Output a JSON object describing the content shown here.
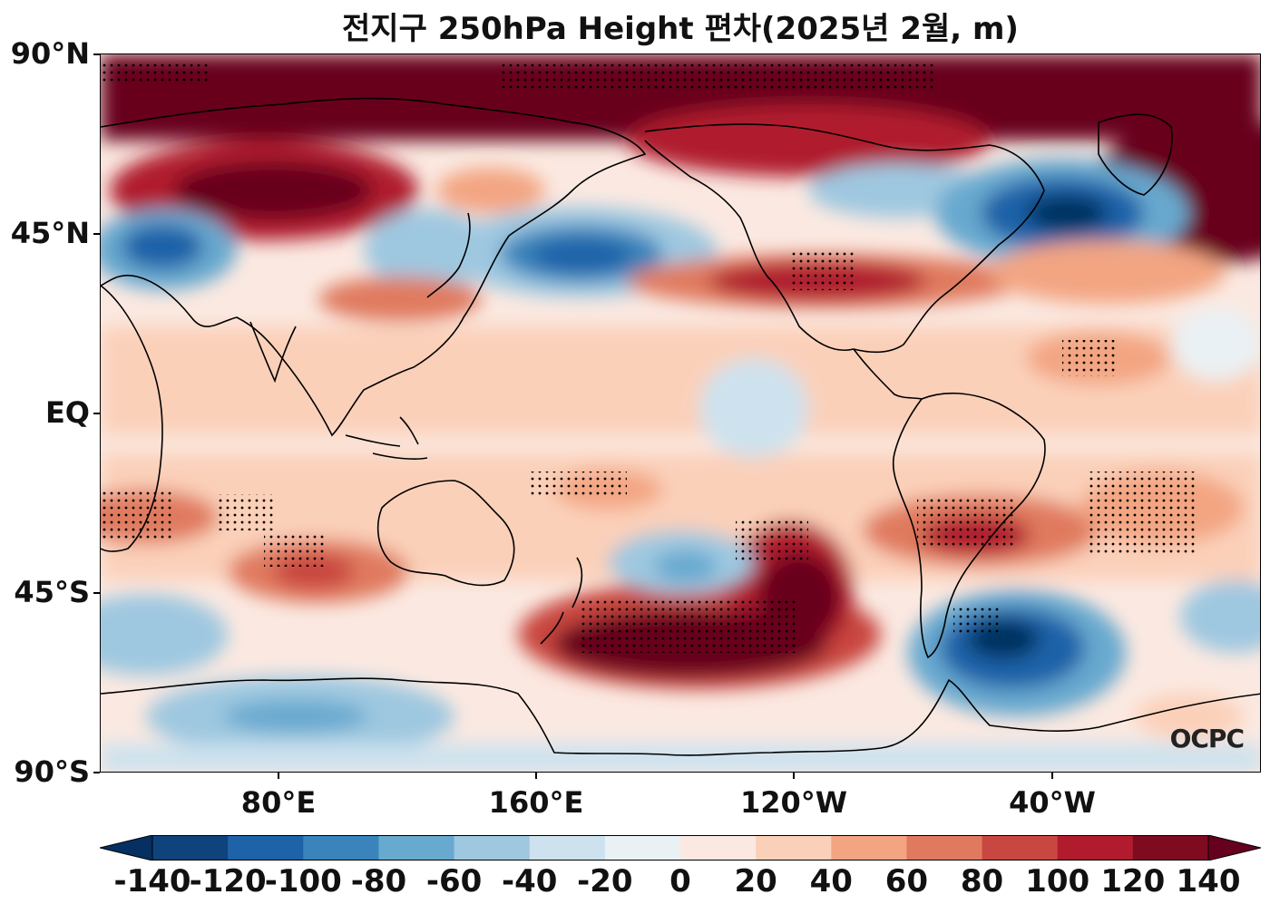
{
  "title": "전지구 250hPa Height 편차(2025년 2월, m)",
  "logo": "OCPC",
  "y_axis": [
    "90°N",
    "45°N",
    "EQ",
    "45°S",
    "90°S"
  ],
  "x_axis": [
    "80°E",
    "160°E",
    "120°W",
    "40°W"
  ],
  "colorbar": {
    "labels": [
      "-140",
      "-120",
      "-100",
      "-80",
      "-60",
      "-40",
      "-20",
      "0",
      "20",
      "40",
      "60",
      "80",
      "100",
      "120",
      "140"
    ],
    "colors": [
      "#053061",
      "#0f437b",
      "#1e62a8",
      "#3a84bb",
      "#67a9cf",
      "#9ec8e0",
      "#cde2ee",
      "#eaf1f4",
      "#fbe9e1",
      "#fbd0b9",
      "#f3a582",
      "#e07a5f",
      "#c94741",
      "#b01c2e",
      "#7f0b21",
      "#67001f"
    ]
  },
  "map": {
    "projection": "PlateCarree, central longitude 160°E",
    "variable": "250hPa geopotential height anomaly",
    "units": "m",
    "stippling": "statistically significant regions"
  }
}
